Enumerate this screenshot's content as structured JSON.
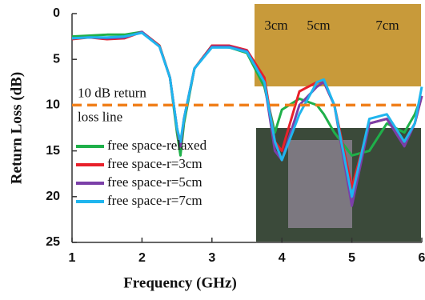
{
  "chart_data": {
    "type": "line",
    "x_label": "Frequency (GHz)",
    "y_label": "Return Loss (dB)",
    "x": [
      1,
      1.25,
      1.5,
      1.75,
      2,
      2.25,
      2.4,
      2.5,
      2.55,
      2.6,
      2.75,
      3,
      3.25,
      3.5,
      3.75,
      3.9,
      4,
      4.25,
      4.5,
      4.6,
      4.75,
      5,
      5.25,
      5.5,
      5.75,
      5.9,
      6
    ],
    "series": [
      {
        "name": "free space-relaxed",
        "color": "#1fb04a",
        "values": [
          2.5,
          2.4,
          2.3,
          2.3,
          2.0,
          3.5,
          7,
          13,
          15.5,
          12,
          6,
          3.5,
          3.7,
          4.3,
          8,
          13,
          10.5,
          9.3,
          10,
          11,
          13,
          15.5,
          15,
          12,
          13,
          11,
          9
        ]
      },
      {
        "name": "free space-r=3cm",
        "color": "#e8202a",
        "values": [
          2.8,
          2.6,
          2.8,
          2.7,
          2.0,
          3.5,
          7,
          12.5,
          14.5,
          11.5,
          6,
          3.5,
          3.5,
          4,
          7,
          14,
          15,
          8.5,
          7.5,
          7.5,
          10,
          19,
          12,
          11.5,
          14,
          12,
          9
        ]
      },
      {
        "name": "free space-r=5cm",
        "color": "#7b3fa8",
        "values": [
          2.7,
          2.6,
          2.7,
          2.6,
          2.0,
          3.6,
          7,
          12.5,
          14.5,
          11.5,
          6,
          3.6,
          3.6,
          4.1,
          7.5,
          15,
          16,
          10,
          8,
          7.5,
          10,
          21,
          12,
          11.5,
          14.5,
          12,
          9
        ]
      },
      {
        "name": "free space-r=7cm",
        "color": "#1fb5ee",
        "values": [
          2.7,
          2.6,
          2.6,
          2.5,
          2.1,
          3.6,
          7,
          12.5,
          14,
          11.5,
          6,
          3.7,
          3.7,
          4.2,
          7.5,
          14,
          16,
          11,
          7.5,
          7.2,
          10,
          20,
          11.5,
          11,
          14,
          12,
          8
        ]
      }
    ],
    "xlim": [
      1,
      6
    ],
    "xticks": [
      1,
      2,
      3,
      4,
      5,
      6
    ],
    "ylim": [
      25,
      0
    ],
    "yticks": [
      0,
      5,
      10,
      15,
      20,
      25
    ],
    "reference_line": {
      "value": 10,
      "color": "#f07f1a",
      "label": [
        "10 dB return",
        "loss line"
      ]
    },
    "inset_labels": [
      "3cm",
      "5cm",
      "7cm"
    ]
  }
}
